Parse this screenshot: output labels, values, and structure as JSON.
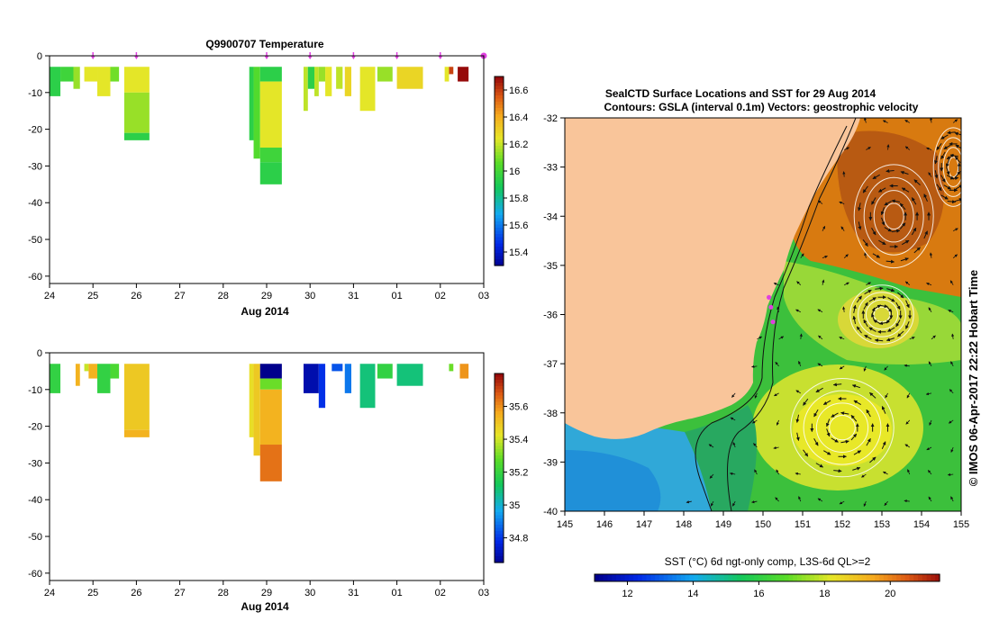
{
  "colors": {
    "land": "#f9c59a",
    "accent_marker": "#e040e0"
  },
  "chart_data": [
    {
      "type": "heatmap",
      "title": "Q9900707  Temperature",
      "xlabel": "Aug 2014",
      "x_ticks": [
        "24",
        "25",
        "26",
        "27",
        "28",
        "29",
        "30",
        "31",
        "01",
        "02",
        "03"
      ],
      "y_ticks": [
        "0",
        "-10",
        "-20",
        "-30",
        "-40",
        "-50",
        "-60"
      ],
      "ylim": [
        -62,
        0
      ],
      "colorbar_ticks": [
        "16.6",
        "16.4",
        "16.2",
        "16",
        "15.8",
        "15.6",
        "15.4"
      ],
      "colorbar_range": [
        15.3,
        16.7
      ],
      "profile_marker_days": [
        25,
        26,
        29,
        30,
        31,
        32,
        33,
        34
      ],
      "profiles": [
        {
          "x0": 24.0,
          "x1": 24.25,
          "cells": [
            {
              "d0": 3,
              "d1": 11,
              "v": 15.95
            }
          ]
        },
        {
          "x0": 24.25,
          "x1": 24.55,
          "cells": [
            {
              "d0": 3,
              "d1": 7,
              "v": 16.0
            }
          ]
        },
        {
          "x0": 24.55,
          "x1": 24.7,
          "cells": [
            {
              "d0": 3,
              "d1": 9,
              "v": 16.15
            }
          ]
        },
        {
          "x0": 24.8,
          "x1": 25.1,
          "cells": [
            {
              "d0": 3,
              "d1": 7,
              "v": 16.25
            }
          ]
        },
        {
          "x0": 25.1,
          "x1": 25.4,
          "cells": [
            {
              "d0": 3,
              "d1": 11,
              "v": 16.25
            }
          ]
        },
        {
          "x0": 25.4,
          "x1": 25.6,
          "cells": [
            {
              "d0": 3,
              "d1": 7,
              "v": 16.1
            }
          ]
        },
        {
          "x0": 25.72,
          "x1": 26.3,
          "cells": [
            {
              "d0": 3,
              "d1": 10,
              "v": 16.25
            },
            {
              "d0": 10,
              "d1": 21,
              "v": 16.15
            },
            {
              "d0": 21,
              "d1": 23,
              "v": 15.95
            }
          ]
        },
        {
          "x0": 28.6,
          "x1": 28.7,
          "cells": [
            {
              "d0": 3,
              "d1": 23,
              "v": 15.95
            }
          ]
        },
        {
          "x0": 28.7,
          "x1": 28.85,
          "cells": [
            {
              "d0": 3,
              "d1": 28,
              "v": 16.05
            }
          ]
        },
        {
          "x0": 28.85,
          "x1": 29.35,
          "cells": [
            {
              "d0": 3,
              "d1": 7,
              "v": 15.95
            },
            {
              "d0": 7,
              "d1": 25,
              "v": 16.25
            },
            {
              "d0": 25,
              "d1": 29,
              "v": 16.0
            },
            {
              "d0": 29,
              "d1": 35,
              "v": 15.95
            }
          ]
        },
        {
          "x0": 29.85,
          "x1": 29.95,
          "cells": [
            {
              "d0": 3,
              "d1": 15,
              "v": 16.2
            }
          ]
        },
        {
          "x0": 29.95,
          "x1": 30.1,
          "cells": [
            {
              "d0": 3,
              "d1": 9,
              "v": 15.95
            }
          ]
        },
        {
          "x0": 30.1,
          "x1": 30.2,
          "cells": [
            {
              "d0": 3,
              "d1": 11,
              "v": 16.2
            }
          ]
        },
        {
          "x0": 30.2,
          "x1": 30.35,
          "cells": [
            {
              "d0": 3,
              "d1": 7,
              "v": 16.15
            }
          ]
        },
        {
          "x0": 30.35,
          "x1": 30.5,
          "cells": [
            {
              "d0": 3,
              "d1": 11,
              "v": 16.25
            }
          ]
        },
        {
          "x0": 30.6,
          "x1": 30.75,
          "cells": [
            {
              "d0": 3,
              "d1": 9,
              "v": 16.2
            }
          ]
        },
        {
          "x0": 30.8,
          "x1": 30.95,
          "cells": [
            {
              "d0": 3,
              "d1": 11,
              "v": 16.3
            }
          ]
        },
        {
          "x0": 31.15,
          "x1": 31.5,
          "cells": [
            {
              "d0": 3,
              "d1": 15,
              "v": 16.25
            }
          ]
        },
        {
          "x0": 31.55,
          "x1": 31.9,
          "cells": [
            {
              "d0": 3,
              "d1": 7,
              "v": 16.15
            }
          ]
        },
        {
          "x0": 32.0,
          "x1": 32.6,
          "cells": [
            {
              "d0": 3,
              "d1": 9,
              "v": 16.3
            }
          ]
        },
        {
          "x0": 33.1,
          "x1": 33.2,
          "cells": [
            {
              "d0": 3,
              "d1": 7,
              "v": 16.25
            }
          ]
        },
        {
          "x0": 33.2,
          "x1": 33.3,
          "cells": [
            {
              "d0": 3,
              "d1": 5,
              "v": 16.6
            }
          ]
        },
        {
          "x0": 33.4,
          "x1": 33.65,
          "cells": [
            {
              "d0": 3,
              "d1": 7,
              "v": 16.75
            }
          ]
        }
      ]
    },
    {
      "type": "heatmap",
      "title": "",
      "xlabel": "Aug 2014",
      "x_ticks": [
        "24",
        "25",
        "26",
        "27",
        "28",
        "29",
        "30",
        "31",
        "01",
        "02",
        "03"
      ],
      "y_ticks": [
        "0",
        "-10",
        "-20",
        "-30",
        "-40",
        "-50",
        "-60"
      ],
      "ylim": [
        -62,
        0
      ],
      "colorbar_ticks": [
        "35.6",
        "35.4",
        "35.2",
        "35",
        "34.8"
      ],
      "colorbar_range": [
        34.65,
        35.8
      ],
      "profiles": [
        {
          "x0": 24.0,
          "x1": 24.25,
          "cells": [
            {
              "d0": 3,
              "d1": 11,
              "v": 35.2
            }
          ]
        },
        {
          "x0": 24.6,
          "x1": 24.7,
          "cells": [
            {
              "d0": 3,
              "d1": 9,
              "v": 35.55
            }
          ]
        },
        {
          "x0": 24.8,
          "x1": 24.9,
          "cells": [
            {
              "d0": 3,
              "d1": 5,
              "v": 35.4
            }
          ]
        },
        {
          "x0": 24.9,
          "x1": 25.1,
          "cells": [
            {
              "d0": 3,
              "d1": 7,
              "v": 35.55
            }
          ]
        },
        {
          "x0": 25.1,
          "x1": 25.4,
          "cells": [
            {
              "d0": 3,
              "d1": 11,
              "v": 35.2
            }
          ]
        },
        {
          "x0": 25.4,
          "x1": 25.6,
          "cells": [
            {
              "d0": 3,
              "d1": 7,
              "v": 35.25
            }
          ]
        },
        {
          "x0": 25.72,
          "x1": 26.3,
          "cells": [
            {
              "d0": 3,
              "d1": 21,
              "v": 35.5
            },
            {
              "d0": 21,
              "d1": 23,
              "v": 35.55
            }
          ]
        },
        {
          "x0": 28.6,
          "x1": 28.7,
          "cells": [
            {
              "d0": 3,
              "d1": 23,
              "v": 35.45
            }
          ]
        },
        {
          "x0": 28.7,
          "x1": 28.85,
          "cells": [
            {
              "d0": 3,
              "d1": 28,
              "v": 35.5
            }
          ]
        },
        {
          "x0": 28.85,
          "x1": 29.35,
          "cells": [
            {
              "d0": 3,
              "d1": 7,
              "v": 34.65
            },
            {
              "d0": 7,
              "d1": 10,
              "v": 35.3
            },
            {
              "d0": 10,
              "d1": 25,
              "v": 35.55
            },
            {
              "d0": 25,
              "d1": 35,
              "v": 35.65
            }
          ]
        },
        {
          "x0": 29.85,
          "x1": 30.2,
          "cells": [
            {
              "d0": 3,
              "d1": 11,
              "v": 34.7
            }
          ]
        },
        {
          "x0": 30.2,
          "x1": 30.35,
          "cells": [
            {
              "d0": 3,
              "d1": 15,
              "v": 34.8
            }
          ]
        },
        {
          "x0": 30.5,
          "x1": 30.75,
          "cells": [
            {
              "d0": 3,
              "d1": 5,
              "v": 34.85
            }
          ]
        },
        {
          "x0": 30.8,
          "x1": 30.95,
          "cells": [
            {
              "d0": 3,
              "d1": 11,
              "v": 34.9
            }
          ]
        },
        {
          "x0": 31.15,
          "x1": 31.5,
          "cells": [
            {
              "d0": 3,
              "d1": 15,
              "v": 35.1
            }
          ]
        },
        {
          "x0": 31.55,
          "x1": 31.9,
          "cells": [
            {
              "d0": 3,
              "d1": 7,
              "v": 35.2
            }
          ]
        },
        {
          "x0": 32.0,
          "x1": 32.6,
          "cells": [
            {
              "d0": 3,
              "d1": 9,
              "v": 35.1
            }
          ]
        },
        {
          "x0": 33.2,
          "x1": 33.3,
          "cells": [
            {
              "d0": 3,
              "d1": 5,
              "v": 35.3
            }
          ]
        },
        {
          "x0": 33.45,
          "x1": 33.65,
          "cells": [
            {
              "d0": 3,
              "d1": 7,
              "v": 35.6
            }
          ]
        }
      ]
    },
    {
      "type": "heatmap",
      "title": "SealCTD Surface Locations and SST for 29 Aug 2014",
      "subtitle": "Contours: GSLA (interval 0.1m) Vectors: geostrophic velocity",
      "x_ticks": [
        "145",
        "146",
        "147",
        "148",
        "149",
        "150",
        "151",
        "152",
        "153",
        "154",
        "155"
      ],
      "y_ticks": [
        "-32",
        "-33",
        "-34",
        "-35",
        "-36",
        "-37",
        "-38",
        "-39",
        "-40"
      ],
      "xlim": [
        145,
        155
      ],
      "ylim": [
        -40,
        -32
      ],
      "side_label": "© IMOS 06-Apr-2017 22:22 Hobart Time",
      "colorbar_label": "SST (°C) 6d ngt-only comp, L3S-6d QL>=2",
      "colorbar_ticks": [
        "12",
        "14",
        "16",
        "18",
        "20"
      ],
      "colorbar_range": [
        11,
        21.5
      ],
      "seal_locations": [
        [
          150.15,
          -35.65
        ],
        [
          150.2,
          -35.85
        ],
        [
          150.25,
          -36.15
        ]
      ],
      "eddies": [
        {
          "lon": 153.3,
          "lat": -34.0,
          "rx": 1.0,
          "ry": 1.05,
          "dir": -1
        },
        {
          "lon": 154.8,
          "lat": -33.0,
          "rx": 0.5,
          "ry": 0.8,
          "dir": -1
        },
        {
          "lon": 153.0,
          "lat": -36.0,
          "rx": 0.8,
          "ry": 0.6,
          "dir": 1
        },
        {
          "lon": 152.0,
          "lat": -38.3,
          "rx": 1.3,
          "ry": 1.0,
          "dir": -1
        }
      ]
    }
  ]
}
